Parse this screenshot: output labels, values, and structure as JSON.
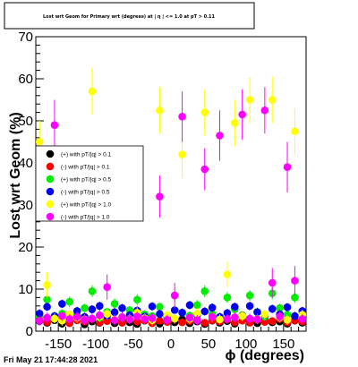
{
  "chart_data": {
    "type": "scatter",
    "title": "Lost wrt Geom for Primary wrt (degrees) at | η | <= 1.0 at pT > 0.11",
    "xlabel": "ϕ (degrees)",
    "ylabel": "Lost wrt Geom (%)",
    "xlim": [
      -180,
      180
    ],
    "ylim": [
      0,
      70
    ],
    "xticks": [
      -150,
      -100,
      -50,
      0,
      50,
      100,
      150
    ],
    "yticks": [
      0,
      10,
      20,
      30,
      40,
      50,
      60,
      70
    ],
    "grid": false,
    "legend_position": "left",
    "timestamp": "Fri May 21 17:44:28 2021",
    "series": [
      {
        "name": "(+) with pT/|q| > 0.1",
        "color": "#000000",
        "x": [
          -175,
          -165,
          -155,
          -145,
          -135,
          -125,
          -115,
          -105,
          -95,
          -85,
          -75,
          -65,
          -55,
          -45,
          -35,
          -25,
          -15,
          -5,
          5,
          15,
          25,
          35,
          45,
          55,
          65,
          75,
          85,
          95,
          105,
          115,
          125,
          135,
          145,
          155,
          165,
          175
        ],
        "y": [
          2.4,
          2.0,
          2.6,
          1.8,
          2.2,
          2.9,
          1.6,
          2.3,
          2.0,
          2.7,
          1.9,
          2.4,
          2.1,
          1.7,
          2.5,
          2.2,
          1.8,
          2.6,
          2.1,
          2.8,
          1.9,
          2.3,
          1.7,
          2.5,
          2.0,
          2.4,
          1.8,
          2.6,
          2.2,
          1.9,
          2.7,
          2.1,
          2.3,
          1.8,
          2.5,
          2.0
        ],
        "err": [
          0.6,
          0.6,
          0.6,
          0.6,
          0.6,
          0.6,
          0.6,
          0.6,
          0.6,
          0.6,
          0.6,
          0.6,
          0.6,
          0.6,
          0.6,
          0.6,
          0.6,
          0.6,
          0.6,
          0.6,
          0.6,
          0.6,
          0.6,
          0.6,
          0.6,
          0.6,
          0.6,
          0.6,
          0.6,
          0.6,
          0.6,
          0.6,
          0.6,
          0.6,
          0.6,
          0.6
        ]
      },
      {
        "name": "(-) with pT/|q| > 0.1",
        "color": "#ff0000",
        "x": [
          -175,
          -165,
          -155,
          -145,
          -135,
          -125,
          -115,
          -105,
          -95,
          -85,
          -75,
          -65,
          -55,
          -45,
          -35,
          -25,
          -15,
          -5,
          5,
          15,
          25,
          35,
          45,
          55,
          65,
          75,
          85,
          95,
          105,
          115,
          125,
          135,
          145,
          155,
          165,
          175
        ],
        "y": [
          2.8,
          2.2,
          3.0,
          2.5,
          1.9,
          2.6,
          2.3,
          2.9,
          2.1,
          2.4,
          2.7,
          2.0,
          2.8,
          2.3,
          2.6,
          1.9,
          2.5,
          2.2,
          2.9,
          2.1,
          2.4,
          2.7,
          2.0,
          2.6,
          2.3,
          2.8,
          2.1,
          2.5,
          2.0,
          2.7,
          2.2,
          2.4,
          2.9,
          2.1,
          2.6,
          2.3
        ],
        "err": [
          0.6,
          0.6,
          0.6,
          0.6,
          0.6,
          0.6,
          0.6,
          0.6,
          0.6,
          0.6,
          0.6,
          0.6,
          0.6,
          0.6,
          0.6,
          0.6,
          0.6,
          0.6,
          0.6,
          0.6,
          0.6,
          0.6,
          0.6,
          0.6,
          0.6,
          0.6,
          0.6,
          0.6,
          0.6,
          0.6,
          0.6,
          0.6,
          0.6,
          0.6,
          0.6,
          0.6
        ]
      },
      {
        "name": "(+) with pT/|q| > 0.5",
        "color": "#00ee00",
        "x": [
          -175,
          -165,
          -155,
          -145,
          -135,
          -125,
          -115,
          -105,
          -95,
          -85,
          -75,
          -65,
          -55,
          -45,
          -35,
          -25,
          -15,
          -5,
          5,
          15,
          25,
          35,
          45,
          55,
          65,
          75,
          85,
          95,
          105,
          115,
          125,
          135,
          145,
          155,
          165,
          175
        ],
        "y": [
          3.5,
          7.5,
          3.0,
          4.2,
          7.0,
          3.8,
          5.5,
          9.5,
          3.2,
          4.6,
          6.5,
          3.4,
          5.0,
          7.5,
          4.0,
          3.6,
          5.8,
          3.1,
          8.5,
          4.4,
          3.7,
          6.2,
          9.5,
          4.1,
          3.3,
          8.0,
          5.2,
          3.8,
          8.5,
          4.6,
          3.5,
          9.0,
          5.5,
          3.9,
          8.0,
          4.2
        ],
        "err": [
          1.0,
          1.3,
          1.0,
          1.0,
          1.3,
          1.0,
          1.0,
          1.4,
          1.0,
          1.0,
          1.3,
          1.0,
          1.0,
          1.3,
          1.0,
          1.0,
          1.0,
          1.0,
          1.4,
          1.0,
          1.0,
          1.2,
          1.4,
          1.0,
          1.0,
          1.3,
          1.0,
          1.0,
          1.3,
          1.0,
          1.0,
          1.4,
          1.0,
          1.0,
          1.3,
          1.0
        ]
      },
      {
        "name": "(-) with pT/|q| > 0.5",
        "color": "#0000ee",
        "x": [
          -175,
          -165,
          -155,
          -145,
          -135,
          -125,
          -115,
          -105,
          -95,
          -85,
          -75,
          -65,
          -55,
          -45,
          -35,
          -25,
          -15,
          -5,
          5,
          15,
          25,
          35,
          45,
          55,
          65,
          75,
          85,
          95,
          105,
          115,
          125,
          135,
          145,
          155,
          165,
          175
        ],
        "y": [
          4.2,
          5.8,
          3.6,
          6.5,
          3.9,
          4.8,
          3.4,
          5.2,
          6.0,
          3.7,
          4.5,
          5.5,
          3.8,
          4.9,
          3.5,
          5.9,
          4.1,
          3.6,
          5.0,
          4.4,
          6.2,
          3.9,
          4.7,
          5.6,
          3.4,
          4.3,
          5.8,
          3.7,
          6.0,
          4.5,
          3.9,
          5.3,
          4.0,
          5.7,
          3.6,
          4.8
        ],
        "err": [
          1.0,
          1.0,
          1.0,
          1.0,
          1.0,
          1.0,
          1.0,
          1.0,
          1.0,
          1.0,
          1.0,
          1.0,
          1.0,
          1.0,
          1.0,
          1.0,
          1.0,
          1.0,
          1.0,
          1.0,
          1.0,
          1.0,
          1.0,
          1.0,
          1.0,
          1.0,
          1.0,
          1.0,
          1.0,
          1.0,
          1.0,
          1.0,
          1.0,
          1.0,
          1.0,
          1.0
        ]
      },
      {
        "name": "(+) with pT/|q| > 1.0",
        "color": "#ffff00",
        "x": [
          -175,
          -165,
          -155,
          -145,
          -135,
          -125,
          -115,
          -105,
          -95,
          -85,
          -75,
          -65,
          -55,
          -45,
          -35,
          -25,
          -15,
          -5,
          5,
          15,
          25,
          35,
          45,
          55,
          65,
          75,
          85,
          95,
          105,
          115,
          125,
          135,
          145,
          155,
          165,
          175
        ],
        "y": [
          45,
          11,
          3.0,
          2.5,
          4.0,
          3.2,
          2.8,
          57,
          3.5,
          4.1,
          2.7,
          3.3,
          2.9,
          4.4,
          3.1,
          2.6,
          52.5,
          3.8,
          3.0,
          42,
          2.9,
          4.2,
          52,
          3.4,
          2.8,
          13.5,
          49.5,
          3.6,
          55,
          2.9,
          4.0,
          55,
          3.3,
          2.7,
          47.5,
          3.9
        ],
        "err": [
          5.0,
          3.0,
          1.2,
          1.2,
          1.3,
          1.2,
          1.2,
          5.5,
          1.2,
          1.3,
          1.2,
          1.2,
          1.2,
          1.3,
          1.2,
          1.2,
          5.5,
          1.2,
          1.2,
          5.5,
          1.2,
          1.3,
          5.5,
          1.2,
          1.2,
          3.0,
          5.5,
          1.2,
          5.5,
          1.2,
          1.3,
          5.5,
          1.2,
          1.2,
          5.5,
          1.2
        ]
      },
      {
        "name": "(-) with pT/|q| > 1.0",
        "color": "#ff00ff",
        "x": [
          -175,
          -165,
          -155,
          -145,
          -135,
          -125,
          -115,
          -105,
          -95,
          -85,
          -75,
          -65,
          -55,
          -45,
          -35,
          -25,
          -15,
          -5,
          5,
          15,
          25,
          35,
          45,
          55,
          65,
          75,
          85,
          95,
          105,
          115,
          125,
          135,
          145,
          155,
          165,
          175
        ],
        "y": [
          2.5,
          3.2,
          49,
          3.6,
          2.9,
          3.4,
          2.7,
          3.0,
          3.8,
          10.5,
          2.6,
          3.3,
          2.8,
          3.5,
          2.9,
          3.1,
          32,
          2.7,
          8.5,
          51,
          3.2,
          2.6,
          38.5,
          3.4,
          46.5,
          2.9,
          3.3,
          51.5,
          3.0,
          2.8,
          52.5,
          11.5,
          3.5,
          39,
          12,
          2.9
        ],
        "err": [
          1.2,
          1.2,
          6.0,
          1.2,
          1.2,
          1.2,
          1.2,
          1.2,
          1.2,
          3.0,
          1.2,
          1.2,
          1.2,
          1.2,
          1.2,
          1.2,
          5.0,
          1.2,
          3.0,
          6.0,
          1.2,
          1.2,
          5.0,
          1.2,
          6.0,
          1.2,
          1.2,
          6.0,
          1.2,
          1.2,
          5.5,
          3.5,
          1.2,
          6.0,
          3.5,
          1.2
        ]
      }
    ]
  }
}
